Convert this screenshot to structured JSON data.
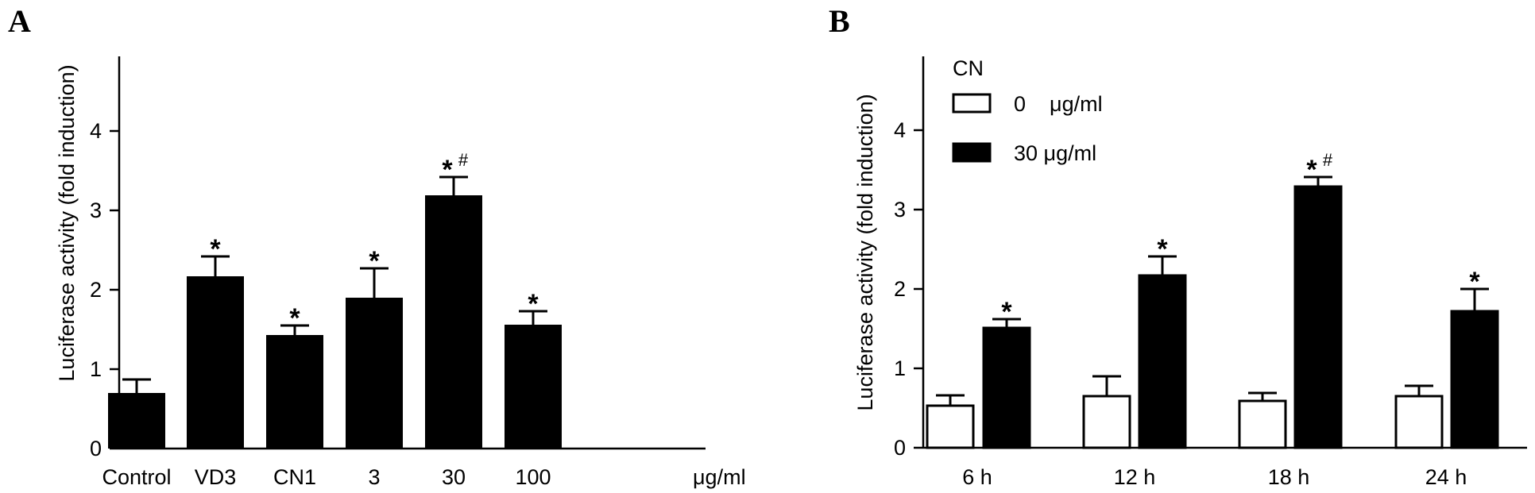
{
  "chart_data": [
    {
      "panel_label": "A",
      "type": "bar",
      "ylabel": "Luciferase activity (fold induction)",
      "ylim": [
        0,
        4
      ],
      "yticks": [
        0,
        1,
        2,
        3,
        4
      ],
      "categories": [
        "Control",
        "VD3",
        "CN1",
        "3",
        "30",
        "100"
      ],
      "category_unit": "μg/ml",
      "values": [
        0.7,
        2.17,
        1.43,
        1.9,
        3.19,
        1.56
      ],
      "errors": [
        0.17,
        0.25,
        0.12,
        0.37,
        0.23,
        0.17
      ],
      "annotations": [
        {
          "category": "VD3",
          "marks": [
            "*"
          ]
        },
        {
          "category": "CN1",
          "marks": [
            "*"
          ]
        },
        {
          "category": "3",
          "marks": [
            "*"
          ]
        },
        {
          "category": "30",
          "marks": [
            "*",
            "#"
          ]
        },
        {
          "category": "100",
          "marks": [
            "*"
          ]
        }
      ],
      "colors": {
        "bar": "#000000"
      }
    },
    {
      "panel_label": "B",
      "type": "bar",
      "ylabel": "Luciferase activity (fold induction)",
      "ylim": [
        0,
        4
      ],
      "yticks": [
        0,
        1,
        2,
        3,
        4
      ],
      "categories": [
        "6 h",
        "12 h",
        "18 h",
        "24 h"
      ],
      "legend": {
        "title": "CN",
        "position": "top-left",
        "entries": [
          "0    μg/ml",
          "30 μg/ml"
        ]
      },
      "series": [
        {
          "values": [
            0.53,
            0.65,
            0.59,
            0.65
          ],
          "errors": [
            0.13,
            0.25,
            0.1,
            0.13
          ],
          "color": "#ffffff"
        },
        {
          "values": [
            1.51,
            2.17,
            3.29,
            1.72
          ],
          "errors": [
            0.11,
            0.24,
            0.12,
            0.28
          ],
          "color": "#000000"
        }
      ],
      "annotations": [
        {
          "category": "6 h",
          "series": 1,
          "marks": [
            "*"
          ]
        },
        {
          "category": "12 h",
          "series": 1,
          "marks": [
            "*"
          ]
        },
        {
          "category": "18 h",
          "series": 1,
          "marks": [
            "*",
            "#"
          ]
        },
        {
          "category": "24 h",
          "series": 1,
          "marks": [
            "*"
          ]
        }
      ]
    }
  ]
}
